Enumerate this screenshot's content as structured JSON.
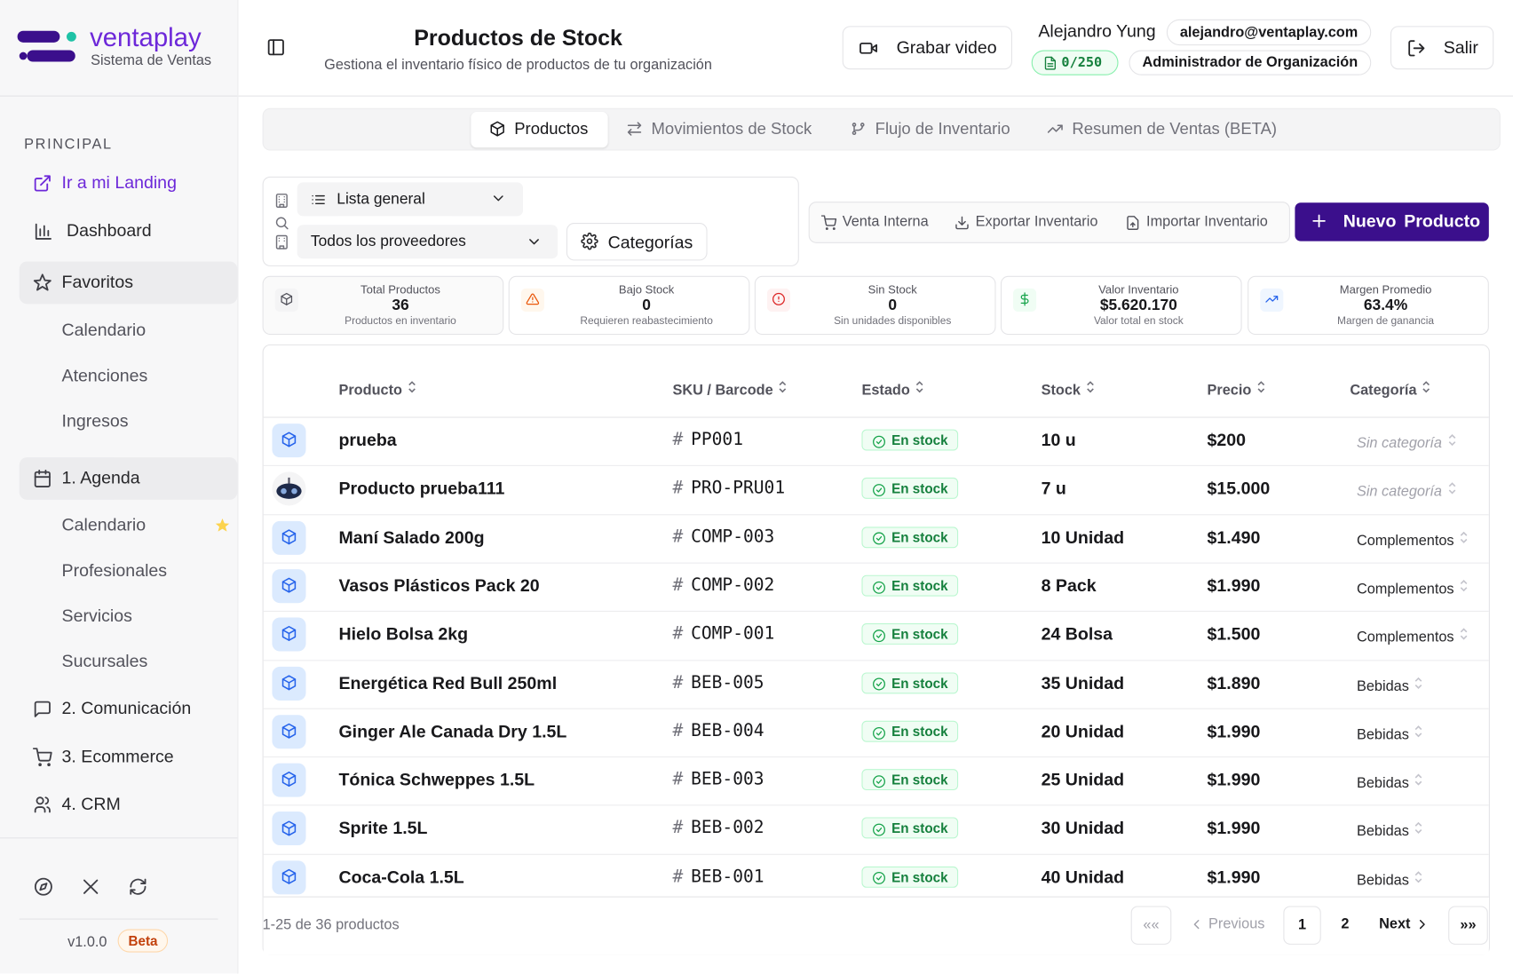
{
  "brand": {
    "name": "ventaplay",
    "tagline": "Sistema de Ventas"
  },
  "sidebar": {
    "section": "PRINCIPAL",
    "items": [
      "Ir a mi Landing",
      "Dashboard",
      "Favoritos",
      "Calendario",
      "Atenciones",
      "Ingresos",
      "1. Agenda",
      "Calendario",
      "Profesionales",
      "Servicios",
      "Sucursales",
      "2. Comunicación",
      "3. Ecommerce",
      "4. CRM"
    ],
    "version": "v1.0.0",
    "badge": "Beta"
  },
  "header": {
    "title": "Productos de Stock",
    "subtitle": "Gestiona el inventario físico de productos de tu organización",
    "record": "Grabar video",
    "user": "Alejandro Yung",
    "email": "alejandro@ventaplay.com",
    "quota": "0/250",
    "role": "Administrador de Organización",
    "logout": "Salir"
  },
  "tabs": [
    "Productos",
    "Movimientos de Stock",
    "Flujo de Inventario",
    "Resumen de Ventas (BETA)"
  ],
  "filters": {
    "list": "Lista general",
    "provider": "Todos los proveedores",
    "categories": "Categorías"
  },
  "actions": [
    "Venta Interna",
    "Exportar Inventario",
    "Importar Inventario"
  ],
  "new_button": "Nuevo Producto",
  "stats": [
    {
      "label": "Total Productos",
      "value": "36",
      "note": "Productos en inventario"
    },
    {
      "label": "Bajo Stock",
      "value": "0",
      "note": "Requieren reabastecimiento"
    },
    {
      "label": "Sin Stock",
      "value": "0",
      "note": "Sin unidades disponibles"
    },
    {
      "label": "Valor Inventario",
      "value": "$5.620.170",
      "note": "Valor total en stock"
    },
    {
      "label": "Margen Promedio",
      "value": "63.4%",
      "note": "Margen de ganancia"
    }
  ],
  "table": {
    "headers": [
      "Producto",
      "SKU / Barcode",
      "Estado",
      "Stock",
      "Precio",
      "Categoría"
    ],
    "rows": [
      [
        "prueba",
        "PP001",
        "En stock",
        "10 u",
        "$200",
        "Sin categoría"
      ],
      [
        "Producto prueba111",
        "PRO-PRU01",
        "En stock",
        "7 u",
        "$15.000",
        "Sin categoría"
      ],
      [
        "Maní Salado 200g",
        "COMP-003",
        "En stock",
        "10 Unidad",
        "$1.490",
        "Complementos"
      ],
      [
        "Vasos Plásticos Pack 20",
        "COMP-002",
        "En stock",
        "8 Pack",
        "$1.990",
        "Complementos"
      ],
      [
        "Hielo Bolsa 2kg",
        "COMP-001",
        "En stock",
        "24 Bolsa",
        "$1.500",
        "Complementos"
      ],
      [
        "Energética Red Bull 250ml",
        "BEB-005",
        "En stock",
        "35 Unidad",
        "$1.890",
        "Bebidas"
      ],
      [
        "Ginger Ale Canada Dry 1.5L",
        "BEB-004",
        "En stock",
        "20 Unidad",
        "$1.990",
        "Bebidas"
      ],
      [
        "Tónica Schweppes 1.5L",
        "BEB-003",
        "En stock",
        "25 Unidad",
        "$1.990",
        "Bebidas"
      ],
      [
        "Sprite 1.5L",
        "BEB-002",
        "En stock",
        "30 Unidad",
        "$1.990",
        "Bebidas"
      ],
      [
        "Coca-Cola 1.5L",
        "BEB-001",
        "En stock",
        "40 Unidad",
        "$1.990",
        "Bebidas"
      ]
    ]
  },
  "footer": {
    "summary": "1-25 de 36 productos",
    "pages": [
      "««",
      "Previous",
      "1",
      "2",
      "Next",
      "»»"
    ]
  }
}
